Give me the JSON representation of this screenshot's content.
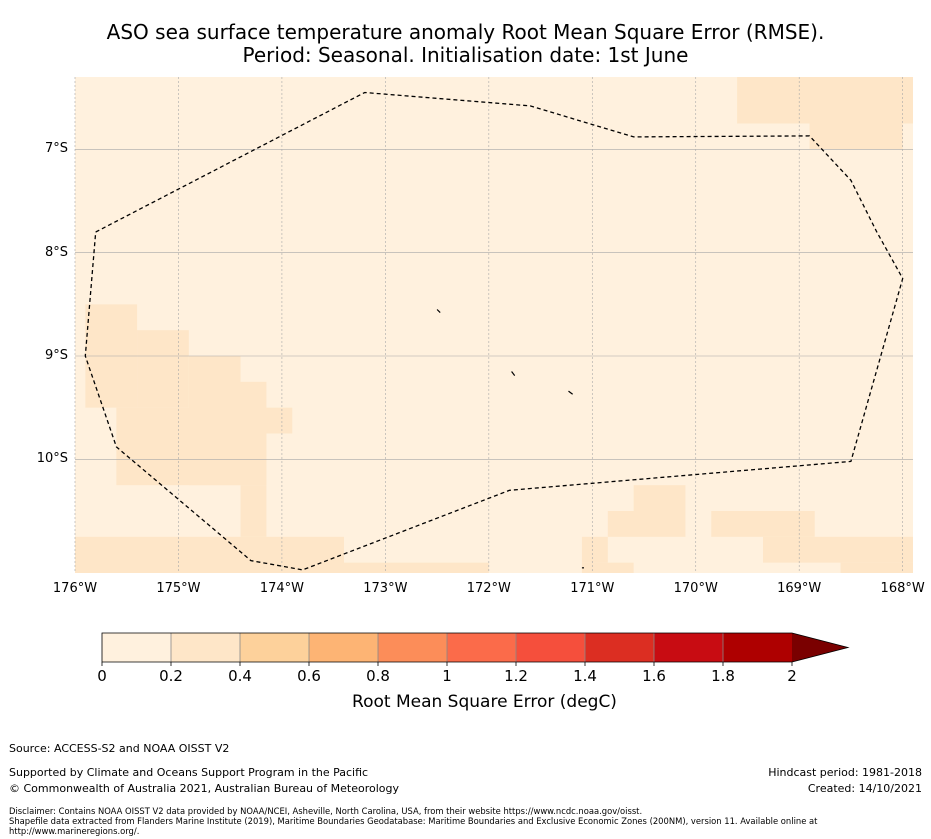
{
  "title": {
    "line1": "ASO sea surface temperature anomaly Root Mean Square Error (RMSE).",
    "line2": "Period: Seasonal. Initialisation date: 1st June"
  },
  "map": {
    "lon_range": [
      -176,
      -167.9
    ],
    "lat_range": [
      -11.1,
      -6.3
    ],
    "lat_ticks": [
      {
        "value": -7,
        "label": "7°S"
      },
      {
        "value": -8,
        "label": "8°S"
      },
      {
        "value": -9,
        "label": "9°S"
      },
      {
        "value": -10,
        "label": "10°S"
      }
    ],
    "lon_ticks": [
      {
        "value": -176,
        "label": "176°W"
      },
      {
        "value": -175,
        "label": "175°W"
      },
      {
        "value": -174,
        "label": "174°W"
      },
      {
        "value": -173,
        "label": "173°W"
      },
      {
        "value": -172,
        "label": "172°W"
      },
      {
        "value": -171,
        "label": "171°W"
      },
      {
        "value": -170,
        "label": "170°W"
      },
      {
        "value": -169,
        "label": "169°W"
      },
      {
        "value": -168,
        "label": "168°W"
      }
    ],
    "background_value_color": "#fff1de",
    "higher_value_color": "#fee6c8",
    "higher_value_regions_lonlat": [
      [
        -169.6,
        -6.3,
        -167.9,
        -6.75
      ],
      [
        -168.9,
        -6.75,
        -168.0,
        -7.0
      ],
      [
        -175.9,
        -8.5,
        -175.4,
        -9.5
      ],
      [
        -175.4,
        -8.75,
        -174.9,
        -9.5
      ],
      [
        -174.9,
        -9.0,
        -174.4,
        -10.25
      ],
      [
        -174.4,
        -9.25,
        -174.15,
        -10.25
      ],
      [
        -174.15,
        -9.5,
        -173.9,
        -9.75
      ],
      [
        -175.6,
        -9.5,
        -174.15,
        -10.25
      ],
      [
        -174.4,
        -10.25,
        -174.15,
        -10.75
      ],
      [
        -176.0,
        -10.75,
        -173.4,
        -11.1
      ],
      [
        -173.4,
        -11.0,
        -172.0,
        -11.1
      ],
      [
        -170.6,
        -10.25,
        -170.1,
        -10.5
      ],
      [
        -170.85,
        -10.5,
        -170.1,
        -10.75
      ],
      [
        -171.1,
        -10.75,
        -170.85,
        -11.0
      ],
      [
        -171.1,
        -11.0,
        -170.6,
        -11.1
      ],
      [
        -169.85,
        -10.5,
        -168.85,
        -10.75
      ],
      [
        -169.35,
        -10.75,
        -167.9,
        -11.0
      ],
      [
        -168.6,
        -11.0,
        -167.9,
        -11.1
      ]
    ],
    "eez_boundary_lonlat": [
      [
        -175.8,
        -7.8
      ],
      [
        -173.2,
        -6.45
      ],
      [
        -171.6,
        -6.58
      ],
      [
        -170.6,
        -6.88
      ],
      [
        -168.9,
        -6.87
      ],
      [
        -168.5,
        -7.3
      ],
      [
        -168.25,
        -7.8
      ],
      [
        -168.0,
        -8.25
      ],
      [
        -168.5,
        -10.02
      ],
      [
        -171.8,
        -10.3
      ],
      [
        -173.8,
        -11.07
      ],
      [
        -174.3,
        -10.98
      ],
      [
        -175.6,
        -9.88
      ],
      [
        -175.9,
        -9.0
      ],
      [
        -175.8,
        -7.8
      ]
    ],
    "islands_lonlat": [
      [
        [
          -172.5,
          -8.55
        ],
        [
          -172.47,
          -8.58
        ]
      ],
      [
        [
          -171.78,
          -9.15
        ],
        [
          -171.75,
          -9.19
        ]
      ],
      [
        [
          -171.23,
          -9.34
        ],
        [
          -171.19,
          -9.37
        ]
      ],
      [
        [
          -171.1,
          -11.05
        ],
        [
          -171.08,
          -11.05
        ]
      ]
    ]
  },
  "colorbar": {
    "label": "Root Mean Square Error (degC)",
    "ticks": [
      "0",
      "0.2",
      "0.4",
      "0.6",
      "0.8",
      "1",
      "1.2",
      "1.4",
      "1.6",
      "1.8",
      "2"
    ],
    "colors": [
      "#fff1de",
      "#fee6c8",
      "#fdd19b",
      "#fdb474",
      "#fc8d59",
      "#fb6b4a",
      "#f54f3c",
      "#dc2e22",
      "#c80c12",
      "#ae0000"
    ],
    "extend_color": "#7a0000"
  },
  "footer": {
    "source": "Source: ACCESS-S2 and NOAA OISST V2",
    "supported": "Supported by Climate and Oceans Support Program in the Pacific",
    "copyright": "© Commonwealth of Australia 2021, Australian Bureau of Meteorology",
    "hindcast": "Hindcast period: 1981-2018",
    "created": "Created: 14/10/2021",
    "disclaimer1": "Disclaimer: Contains NOAA OISST V2 data provided by NOAA/NCEI, Asheville, North Carolina, USA, from their website https://www.ncdc.noaa.gov/oisst.",
    "disclaimer2": "Shapefile data extracted from Flanders Marine Institute (2019), Maritime Boundaries Geodatabase: Maritime Boundaries and Exclusive Economic Zones (200NM), version 11. Available online at http://www.marineregions.org/."
  }
}
